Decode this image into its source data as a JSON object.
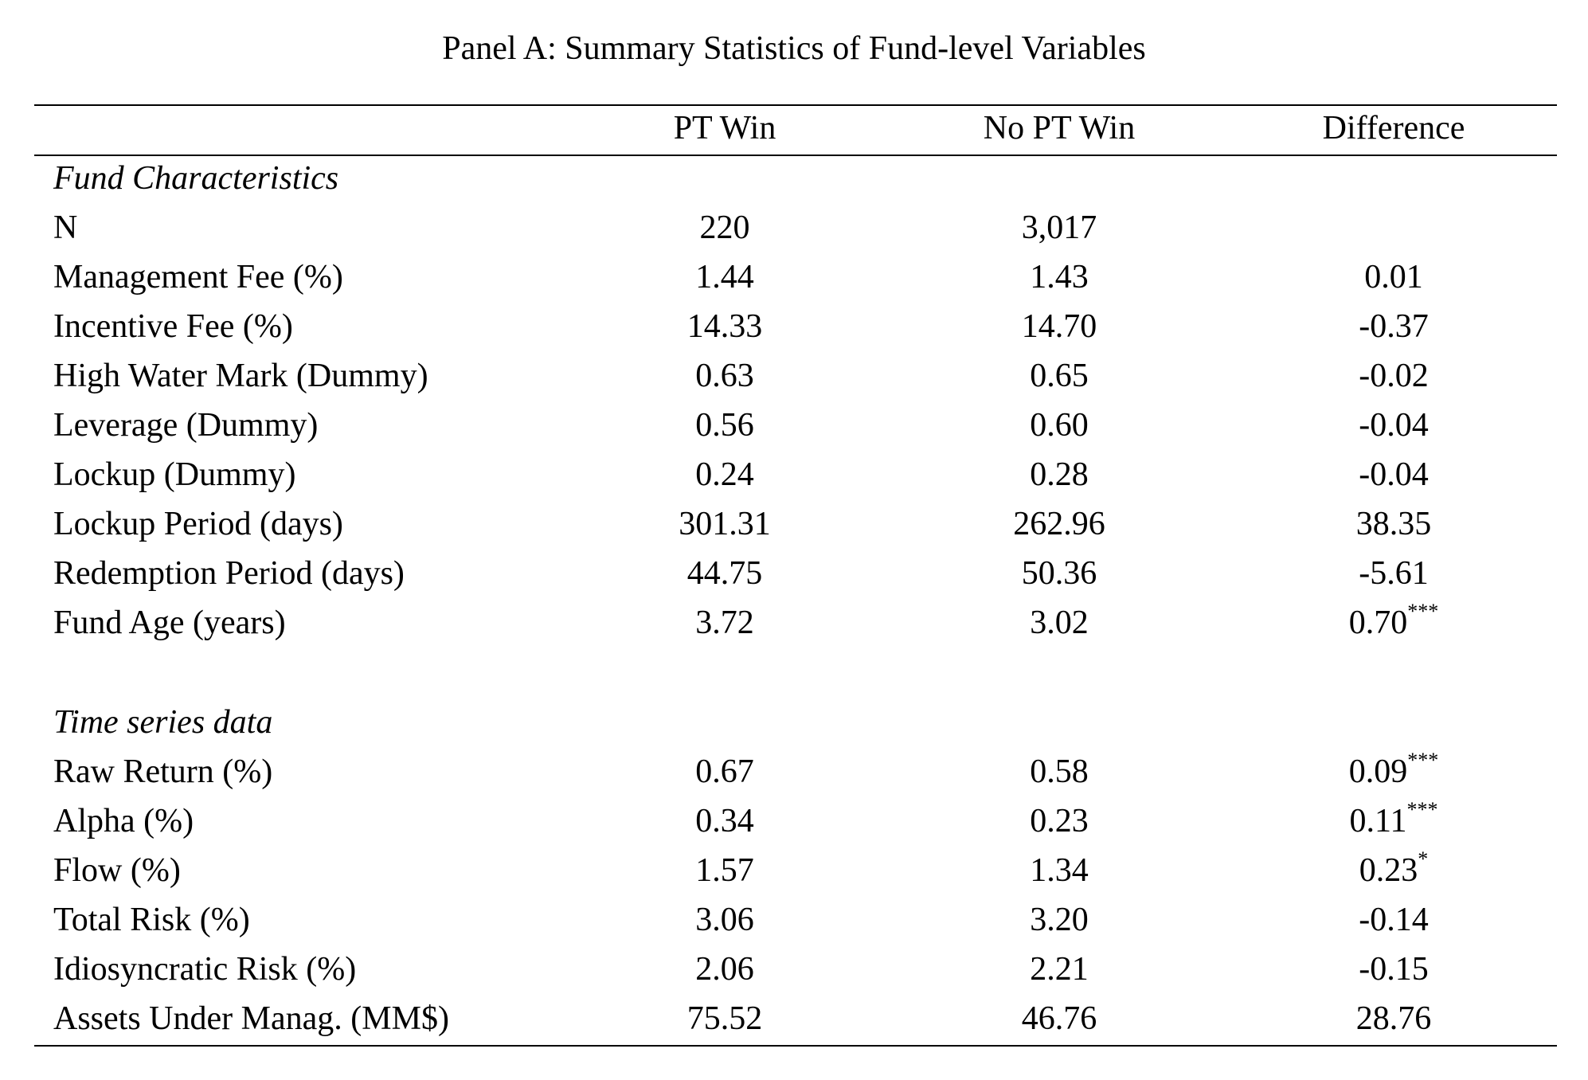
{
  "title": "Panel A: Summary Statistics of Fund-level Variables",
  "columns": [
    "",
    "PT Win",
    "No PT Win",
    "Difference"
  ],
  "sections": [
    {
      "label": "Fund Characteristics",
      "rows": [
        {
          "label": "N",
          "pt_win": "220",
          "no_pt_win": "3,017",
          "difference": "",
          "stars": ""
        },
        {
          "label": "Management Fee (%)",
          "pt_win": "1.44",
          "no_pt_win": "1.43",
          "difference": "0.01",
          "stars": ""
        },
        {
          "label": "Incentive Fee (%)",
          "pt_win": "14.33",
          "no_pt_win": "14.70",
          "difference": "-0.37",
          "stars": ""
        },
        {
          "label": "High Water Mark (Dummy)",
          "pt_win": "0.63",
          "no_pt_win": "0.65",
          "difference": "-0.02",
          "stars": ""
        },
        {
          "label": "Leverage (Dummy)",
          "pt_win": "0.56",
          "no_pt_win": "0.60",
          "difference": "-0.04",
          "stars": ""
        },
        {
          "label": "Lockup (Dummy)",
          "pt_win": "0.24",
          "no_pt_win": "0.28",
          "difference": "-0.04",
          "stars": ""
        },
        {
          "label": "Lockup Period (days)",
          "pt_win": "301.31",
          "no_pt_win": "262.96",
          "difference": "38.35",
          "stars": ""
        },
        {
          "label": "Redemption Period (days)",
          "pt_win": "44.75",
          "no_pt_win": "50.36",
          "difference": "-5.61",
          "stars": ""
        },
        {
          "label": "Fund Age (years)",
          "pt_win": "3.72",
          "no_pt_win": "3.02",
          "difference": "0.70",
          "stars": "***"
        }
      ]
    },
    {
      "label": "Time series data",
      "rows": [
        {
          "label": "Raw Return (%)",
          "pt_win": "0.67",
          "no_pt_win": "0.58",
          "difference": "0.09",
          "stars": "***"
        },
        {
          "label": "Alpha (%)",
          "pt_win": "0.34",
          "no_pt_win": "0.23",
          "difference": "0.11",
          "stars": "***"
        },
        {
          "label": "Flow (%)",
          "pt_win": "1.57",
          "no_pt_win": "1.34",
          "difference": "0.23",
          "stars": "*"
        },
        {
          "label": "Total Risk (%)",
          "pt_win": "3.06",
          "no_pt_win": "3.20",
          "difference": "-0.14",
          "stars": ""
        },
        {
          "label": "Idiosyncratic Risk (%)",
          "pt_win": "2.06",
          "no_pt_win": "2.21",
          "difference": "-0.15",
          "stars": ""
        },
        {
          "label": "Assets Under Manag. (MM$)",
          "pt_win": "75.52",
          "no_pt_win": "46.76",
          "difference": "28.76",
          "stars": ""
        }
      ]
    }
  ]
}
